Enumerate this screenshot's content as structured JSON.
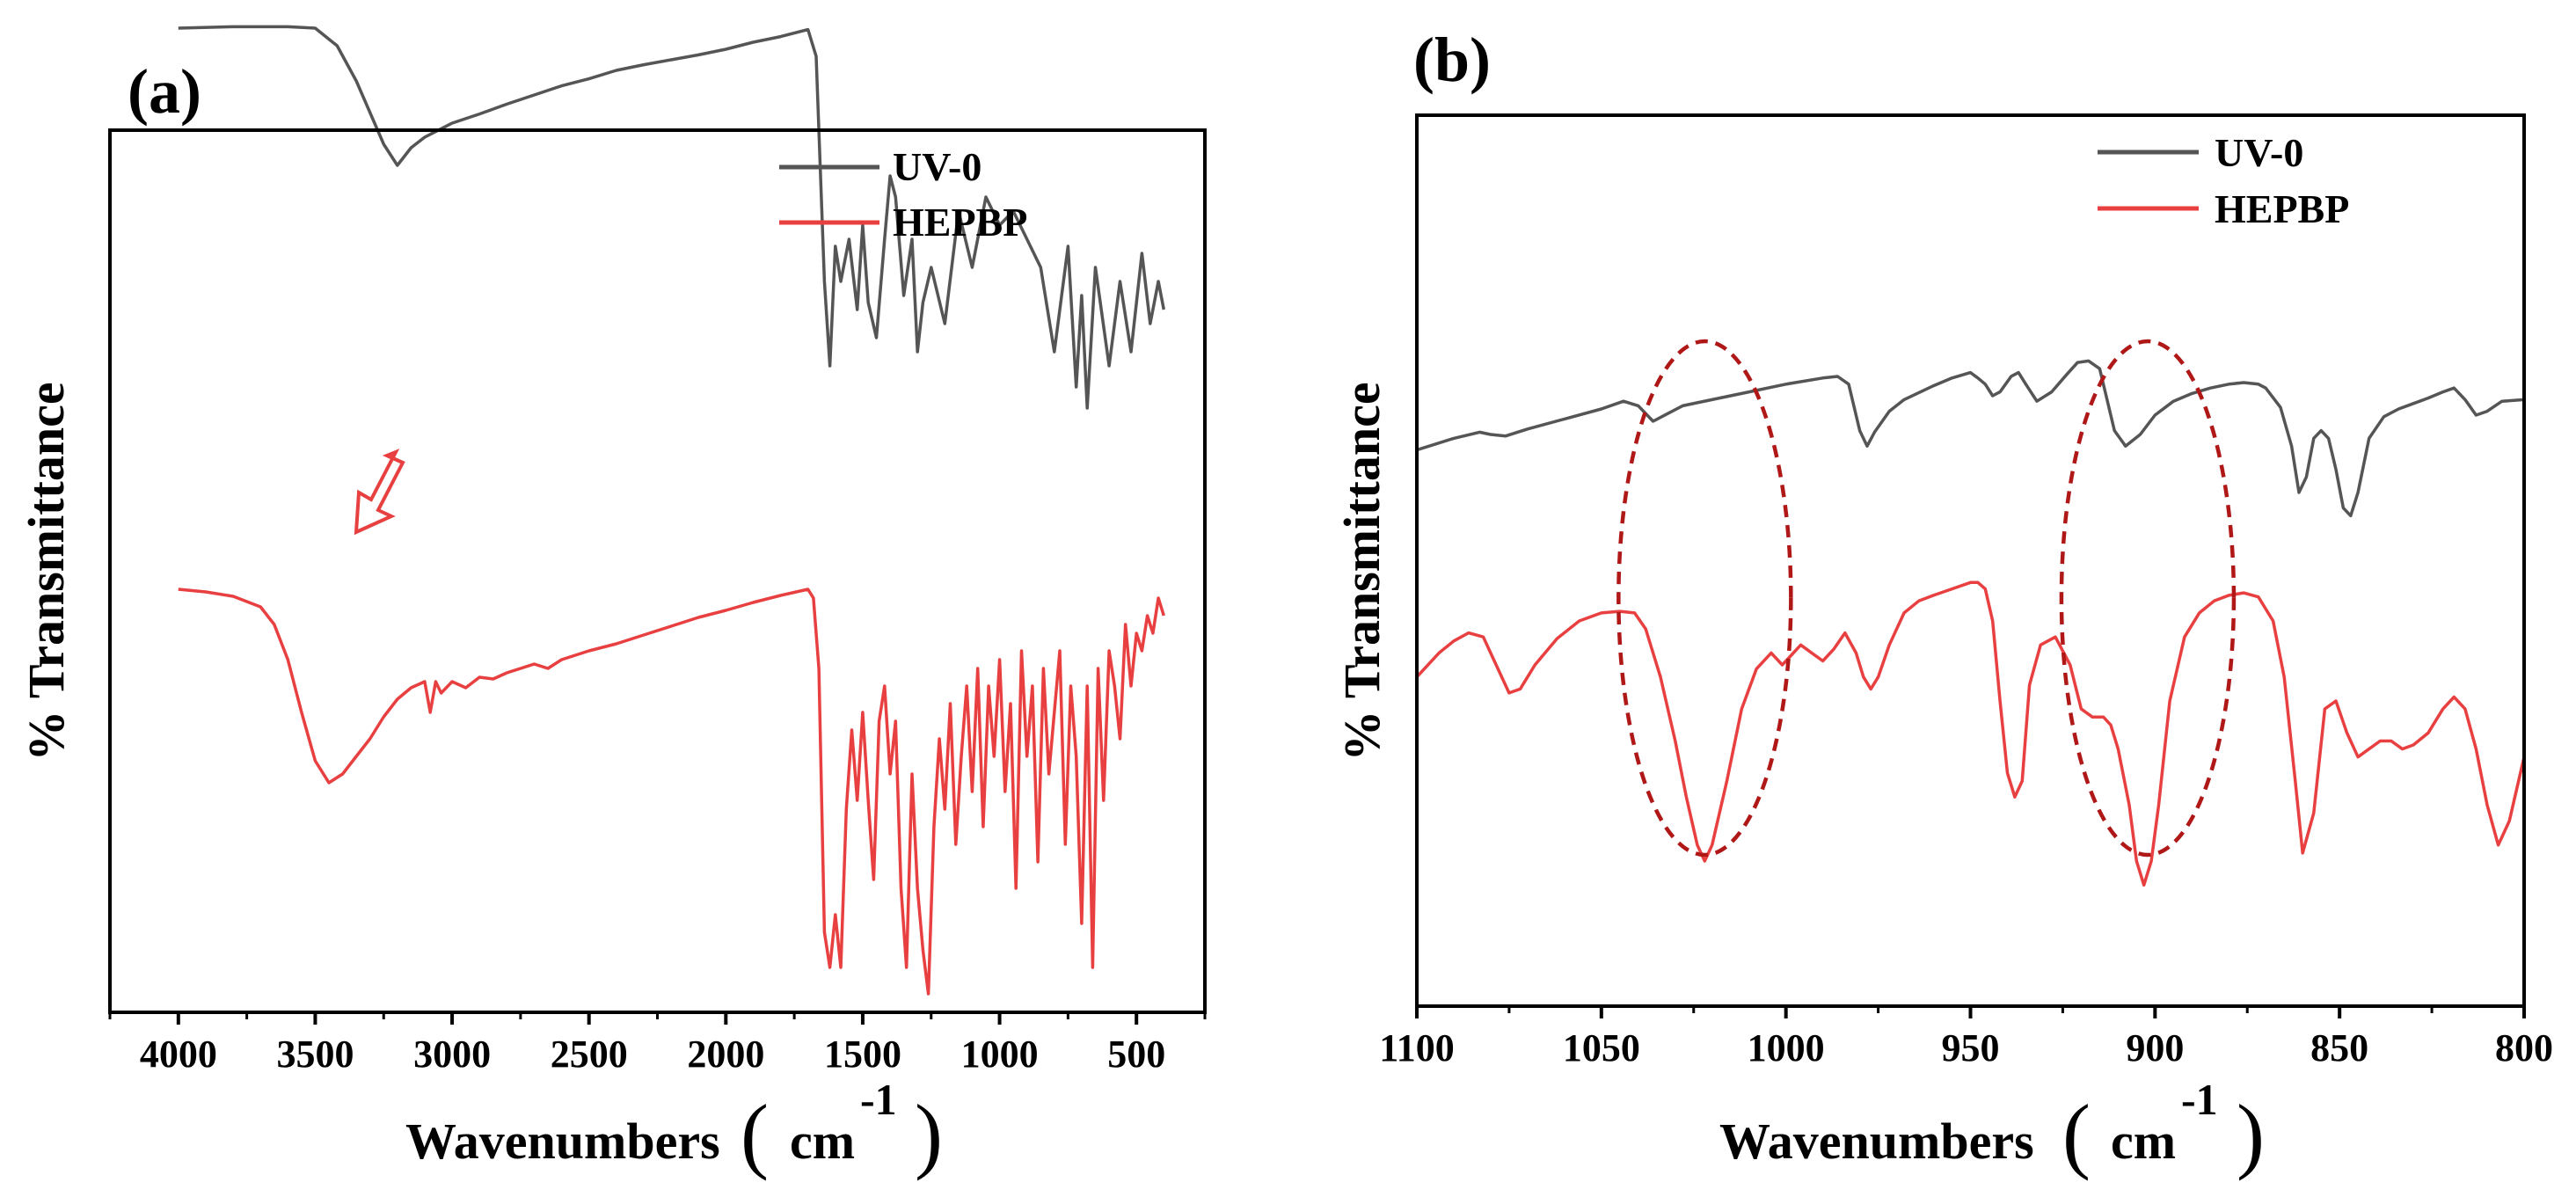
{
  "chart_data": [
    {
      "panel_label": "(a)",
      "type": "line",
      "xlabel": "Wavenumbers",
      "xlabel_unit": "cm",
      "xlabel_exp": "-1",
      "ylabel": "% Transmittance",
      "xlim": [
        4250,
        250
      ],
      "ylim": [
        0,
        1
      ],
      "x_ticks": [
        4000,
        3500,
        3000,
        2500,
        2000,
        1500,
        1000,
        500
      ],
      "x_tick_labels": [
        "4000",
        "3500",
        "3000",
        "2500",
        "2000",
        "1500",
        "1000",
        "500"
      ],
      "y_ticks_shown": false,
      "legend": {
        "position": "top-right",
        "entries": [
          "UV-0",
          "HEPBP"
        ]
      },
      "annotation": "downward arrow indicating shift",
      "series": [
        {
          "name": "UV-0",
          "color": "#555555",
          "x": [
            4000,
            3800,
            3600,
            3500,
            3420,
            3350,
            3300,
            3250,
            3200,
            3150,
            3100,
            3000,
            2900,
            2800,
            2700,
            2600,
            2500,
            2400,
            2300,
            2200,
            2100,
            2000,
            1900,
            1800,
            1700,
            1670,
            1640,
            1620,
            1600,
            1580,
            1550,
            1520,
            1500,
            1480,
            1450,
            1420,
            1400,
            1380,
            1350,
            1320,
            1300,
            1280,
            1250,
            1200,
            1150,
            1100,
            1050,
            1000,
            950,
            900,
            850,
            800,
            750,
            720,
            700,
            680,
            650,
            600,
            560,
            520,
            480,
            450,
            420,
            400
          ],
          "y": [
            0.86,
            0.862,
            0.862,
            0.86,
            0.835,
            0.785,
            0.74,
            0.695,
            0.665,
            0.69,
            0.705,
            0.725,
            0.738,
            0.752,
            0.765,
            0.778,
            0.788,
            0.8,
            0.808,
            0.815,
            0.822,
            0.83,
            0.84,
            0.848,
            0.858,
            0.82,
            0.5,
            0.38,
            0.55,
            0.5,
            0.56,
            0.46,
            0.58,
            0.47,
            0.42,
            0.56,
            0.65,
            0.62,
            0.48,
            0.56,
            0.4,
            0.47,
            0.52,
            0.44,
            0.6,
            0.52,
            0.62,
            0.58,
            0.6,
            0.56,
            0.52,
            0.4,
            0.55,
            0.35,
            0.48,
            0.32,
            0.52,
            0.38,
            0.5,
            0.4,
            0.54,
            0.44,
            0.5,
            0.46
          ]
        },
        {
          "name": "HEPBP",
          "color": "#e84040",
          "x": [
            4000,
            3900,
            3800,
            3700,
            3650,
            3600,
            3550,
            3500,
            3450,
            3400,
            3350,
            3300,
            3250,
            3200,
            3150,
            3100,
            3080,
            3060,
            3040,
            3000,
            2950,
            2900,
            2850,
            2800,
            2750,
            2700,
            2650,
            2600,
            2500,
            2400,
            2300,
            2200,
            2100,
            2000,
            1900,
            1800,
            1700,
            1680,
            1660,
            1640,
            1620,
            1600,
            1580,
            1560,
            1540,
            1520,
            1500,
            1480,
            1460,
            1440,
            1420,
            1400,
            1380,
            1360,
            1340,
            1320,
            1300,
            1280,
            1260,
            1240,
            1220,
            1200,
            1180,
            1160,
            1140,
            1120,
            1100,
            1080,
            1060,
            1040,
            1020,
            1000,
            980,
            960,
            940,
            920,
            900,
            880,
            860,
            840,
            820,
            800,
            780,
            760,
            740,
            720,
            700,
            680,
            660,
            640,
            620,
            600,
            580,
            560,
            540,
            520,
            500,
            480,
            460,
            440,
            420,
            400
          ],
          "y": [
            0.49,
            0.487,
            0.482,
            0.47,
            0.45,
            0.41,
            0.35,
            0.295,
            0.27,
            0.28,
            0.3,
            0.32,
            0.345,
            0.365,
            0.378,
            0.385,
            0.35,
            0.385,
            0.372,
            0.385,
            0.378,
            0.39,
            0.388,
            0.395,
            0.4,
            0.405,
            0.4,
            0.41,
            0.42,
            0.428,
            0.438,
            0.448,
            0.458,
            0.466,
            0.475,
            0.483,
            0.49,
            0.48,
            0.4,
            0.1,
            0.06,
            0.12,
            0.06,
            0.24,
            0.33,
            0.25,
            0.35,
            0.25,
            0.16,
            0.34,
            0.38,
            0.28,
            0.34,
            0.15,
            0.06,
            0.28,
            0.15,
            0.08,
            0.03,
            0.22,
            0.32,
            0.24,
            0.36,
            0.2,
            0.3,
            0.38,
            0.26,
            0.4,
            0.22,
            0.38,
            0.3,
            0.41,
            0.26,
            0.36,
            0.15,
            0.42,
            0.3,
            0.38,
            0.18,
            0.4,
            0.28,
            0.35,
            0.42,
            0.2,
            0.38,
            0.3,
            0.11,
            0.38,
            0.06,
            0.4,
            0.25,
            0.42,
            0.38,
            0.32,
            0.45,
            0.38,
            0.44,
            0.42,
            0.46,
            0.44,
            0.48,
            0.46
          ]
        }
      ]
    },
    {
      "panel_label": "(b)",
      "type": "line",
      "xlabel": "Wavenumbers",
      "xlabel_unit": "cm",
      "xlabel_exp": "-1",
      "ylabel": "% Transmittance",
      "xlim": [
        1100,
        800
      ],
      "ylim": [
        0,
        1
      ],
      "x_ticks": [
        1100,
        1050,
        1000,
        950,
        900,
        850,
        800
      ],
      "x_tick_labels": [
        "1100",
        "1050",
        "1000",
        "950",
        "900",
        "850",
        "800"
      ],
      "y_ticks_shown": false,
      "legend": {
        "position": "top-right",
        "entries": [
          "UV-0",
          "HEPBP"
        ]
      },
      "highlight_ellipses": [
        {
          "center_wavenumber": 1022,
          "label": ""
        },
        {
          "center_wavenumber": 902,
          "label": ""
        }
      ],
      "series": [
        {
          "name": "UV-0",
          "color": "#555555",
          "x": [
            1100,
            1090,
            1083,
            1080,
            1076,
            1070,
            1060,
            1050,
            1044,
            1040,
            1036,
            1032,
            1028,
            1020,
            1010,
            1000,
            990,
            986,
            983,
            980,
            978,
            976,
            972,
            968,
            960,
            955,
            950,
            948,
            946,
            944,
            942,
            939,
            937,
            935,
            932,
            928,
            924,
            921,
            918,
            915,
            913,
            911,
            908,
            904,
            900,
            895,
            890,
            885,
            880,
            876,
            872,
            870,
            866,
            863,
            861,
            859,
            857,
            855,
            853,
            851,
            849,
            847,
            845,
            842,
            838,
            834,
            830,
            826,
            822,
            819,
            816,
            813,
            810,
            806,
            800
          ],
          "y": [
            0.555,
            0.57,
            0.578,
            0.575,
            0.573,
            0.582,
            0.595,
            0.608,
            0.618,
            0.612,
            0.592,
            0.602,
            0.612,
            0.62,
            0.63,
            0.64,
            0.648,
            0.65,
            0.64,
            0.58,
            0.56,
            0.578,
            0.605,
            0.62,
            0.638,
            0.648,
            0.655,
            0.648,
            0.64,
            0.625,
            0.63,
            0.65,
            0.655,
            0.64,
            0.618,
            0.63,
            0.652,
            0.668,
            0.67,
            0.66,
            0.62,
            0.58,
            0.56,
            0.575,
            0.6,
            0.618,
            0.628,
            0.635,
            0.64,
            0.642,
            0.64,
            0.635,
            0.61,
            0.56,
            0.5,
            0.52,
            0.57,
            0.58,
            0.57,
            0.53,
            0.48,
            0.47,
            0.5,
            0.57,
            0.598,
            0.608,
            0.615,
            0.622,
            0.63,
            0.635,
            0.62,
            0.6,
            0.605,
            0.618,
            0.62
          ]
        },
        {
          "name": "HEPBP",
          "color": "#e84040",
          "x": [
            1100,
            1094,
            1090,
            1086,
            1082,
            1078,
            1075,
            1072,
            1068,
            1062,
            1056,
            1050,
            1045,
            1041,
            1038,
            1034,
            1030,
            1027,
            1024,
            1022,
            1020,
            1016,
            1012,
            1008,
            1004,
            1001,
            999,
            996,
            993,
            990,
            987,
            984,
            981,
            979,
            977,
            975,
            972,
            968,
            964,
            960,
            955,
            950,
            948,
            946,
            944,
            942,
            940,
            938,
            936,
            934,
            931,
            927,
            923,
            920,
            917,
            914,
            912,
            910,
            907,
            905,
            903,
            901,
            899,
            896,
            892,
            888,
            884,
            880,
            876,
            872,
            868,
            865,
            862,
            860,
            857,
            854,
            851,
            848,
            845,
            842,
            839,
            836,
            833,
            830,
            826,
            822,
            819,
            816,
            813,
            810,
            807,
            804,
            800
          ],
          "y": [
            0.33,
            0.36,
            0.375,
            0.385,
            0.38,
            0.34,
            0.31,
            0.315,
            0.345,
            0.378,
            0.4,
            0.41,
            0.412,
            0.41,
            0.39,
            0.33,
            0.25,
            0.18,
            0.12,
            0.1,
            0.12,
            0.2,
            0.29,
            0.34,
            0.36,
            0.345,
            0.355,
            0.37,
            0.36,
            0.35,
            0.365,
            0.385,
            0.36,
            0.33,
            0.315,
            0.33,
            0.37,
            0.41,
            0.425,
            0.432,
            0.44,
            0.448,
            0.448,
            0.44,
            0.4,
            0.3,
            0.21,
            0.18,
            0.2,
            0.32,
            0.37,
            0.38,
            0.345,
            0.29,
            0.28,
            0.28,
            0.27,
            0.24,
            0.17,
            0.1,
            0.07,
            0.1,
            0.17,
            0.3,
            0.38,
            0.41,
            0.425,
            0.432,
            0.435,
            0.43,
            0.4,
            0.33,
            0.2,
            0.11,
            0.16,
            0.29,
            0.3,
            0.26,
            0.23,
            0.24,
            0.25,
            0.25,
            0.24,
            0.245,
            0.26,
            0.29,
            0.305,
            0.29,
            0.24,
            0.17,
            0.12,
            0.15,
            0.23
          ]
        }
      ]
    }
  ]
}
